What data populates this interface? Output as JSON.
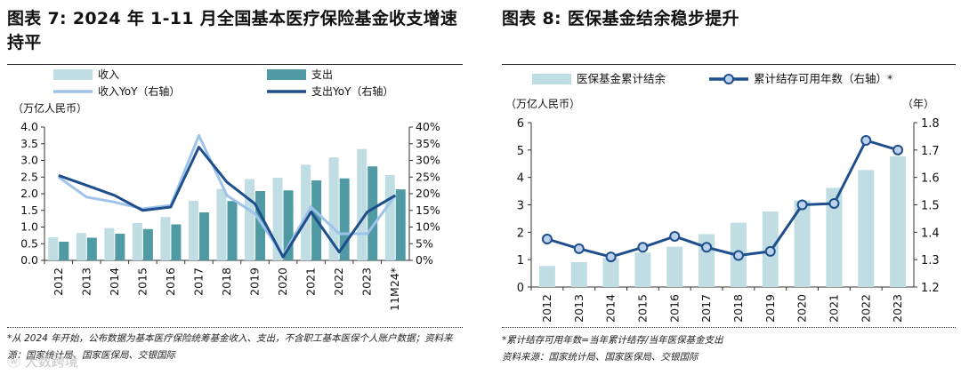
{
  "chart_data": [
    {
      "type": "bar",
      "title": "图表 7: 2024 年 1-11 月全国基本医疗保险基金收支增速持平",
      "ylabel_left": "（万亿人民币）",
      "categories": [
        "2012",
        "2013",
        "2014",
        "2015",
        "2016",
        "2017",
        "2018",
        "2019",
        "2020",
        "2021",
        "2022",
        "2023",
        "11M24*"
      ],
      "ylim": [
        0,
        4.0
      ],
      "y2lim": [
        0,
        40
      ],
      "yticks": [
        "0.0",
        "0.5",
        "1.0",
        "1.5",
        "2.0",
        "2.5",
        "3.0",
        "3.5",
        "4.0"
      ],
      "y2ticks": [
        "0%",
        "5%",
        "10%",
        "15%",
        "20%",
        "25%",
        "30%",
        "35%",
        "40%"
      ],
      "series": [
        {
          "name": "收入",
          "kind": "bar",
          "color": "#bfdde2",
          "values": [
            0.69,
            0.82,
            0.97,
            1.12,
            1.3,
            1.79,
            2.14,
            2.44,
            2.48,
            2.87,
            3.09,
            3.34,
            2.56
          ]
        },
        {
          "name": "支出",
          "kind": "bar",
          "color": "#4f9aa3",
          "values": [
            0.56,
            0.68,
            0.8,
            0.94,
            1.08,
            1.44,
            1.78,
            2.08,
            2.1,
            2.4,
            2.46,
            2.82,
            2.13
          ]
        },
        {
          "name": "收入YoY（右轴）",
          "kind": "line",
          "color": "#9ec3ea",
          "axis": "right",
          "values": [
            25,
            19,
            17.5,
            15.5,
            16.5,
            37.5,
            19.5,
            14,
            1.5,
            16,
            8,
            8,
            19.5
          ]
        },
        {
          "name": "支出YoY（右轴）",
          "kind": "line",
          "color": "#1f4e8c",
          "axis": "right",
          "values": [
            25.5,
            22.5,
            19.5,
            15,
            16,
            34,
            23.5,
            17,
            1,
            14.5,
            2.5,
            14.5,
            19.5
          ]
        }
      ],
      "footnote": "*从 2024 年开始，公布数据为基本医疗保险统筹基金收入、支出，不含职工基本医保个人账户数据；资料来源：国家统计局、国家医保局、交银国际"
    },
    {
      "type": "bar",
      "title": "图表 8: 医保基金结余稳步提升",
      "ylabel_left": "（万亿人民币）",
      "ylabel_right": "（年）",
      "categories": [
        "2012",
        "2013",
        "2014",
        "2015",
        "2016",
        "2017",
        "2018",
        "2019",
        "2020",
        "2021",
        "2022",
        "2023"
      ],
      "ylim": [
        0,
        6
      ],
      "y2lim": [
        1.2,
        1.8
      ],
      "yticks": [
        "0",
        "1",
        "2",
        "3",
        "4",
        "5",
        "6"
      ],
      "y2ticks": [
        "1.2",
        "1.3",
        "1.4",
        "1.5",
        "1.6",
        "1.7",
        "1.8"
      ],
      "series": [
        {
          "name": "医保基金累计结余",
          "kind": "bar",
          "color": "#bfdde2",
          "values": [
            0.77,
            0.91,
            1.06,
            1.26,
            1.47,
            1.93,
            2.35,
            2.76,
            3.16,
            3.62,
            4.27,
            4.77
          ]
        },
        {
          "name": "累计结存可用年数（右轴）*",
          "kind": "line",
          "color": "#1f4e8c",
          "axis": "right",
          "values": [
            1.375,
            1.34,
            1.31,
            1.345,
            1.385,
            1.345,
            1.315,
            1.33,
            1.5,
            1.505,
            1.735,
            1.7
          ]
        }
      ],
      "footnote_lines": [
        "*累计结存可用年数=当年累计结存/当年医保基金支出",
        "资料来源：国家统计局、国家医保局、交银国际"
      ]
    }
  ],
  "watermark": "大数跨境"
}
